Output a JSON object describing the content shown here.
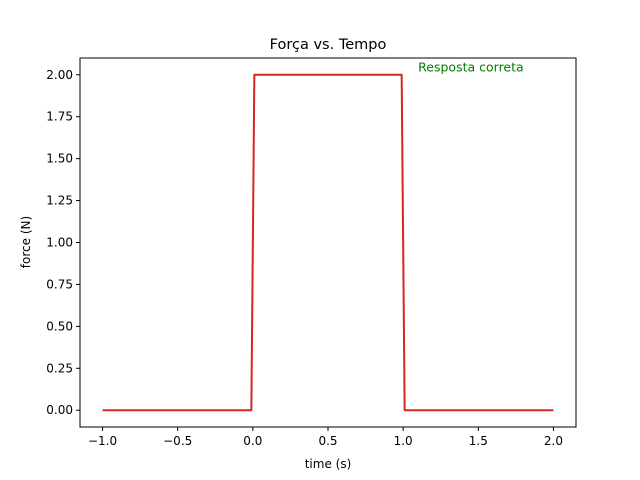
{
  "chart_data": {
    "type": "line",
    "title": "Força vs. Tempo",
    "xlabel": "time (s)",
    "ylabel": "force (N)",
    "xlim": [
      -1.15,
      2.15
    ],
    "ylim": [
      -0.1,
      2.1
    ],
    "xticks": [
      -1.0,
      -0.5,
      0.0,
      0.5,
      1.0,
      1.5,
      2.0
    ],
    "xtick_labels": [
      "−1.0",
      "−0.5",
      "0.0",
      "0.5",
      "1.0",
      "1.5",
      "2.0"
    ],
    "yticks": [
      0.0,
      0.25,
      0.5,
      0.75,
      1.0,
      1.25,
      1.5,
      1.75,
      2.0
    ],
    "ytick_labels": [
      "0.00",
      "0.25",
      "0.50",
      "0.75",
      "1.00",
      "1.25",
      "1.50",
      "1.75",
      "2.00"
    ],
    "grid": false,
    "legend": "none",
    "series": [
      {
        "color": "#d62728",
        "x": [
          -1.0,
          -0.01,
          0.01,
          0.99,
          1.01,
          2.0
        ],
        "y": [
          0,
          0,
          2,
          2,
          0,
          0
        ]
      }
    ],
    "annotations": [
      {
        "text": "Resposta correta",
        "x": 1.1,
        "y": 2.02,
        "color": "#008000"
      }
    ]
  }
}
